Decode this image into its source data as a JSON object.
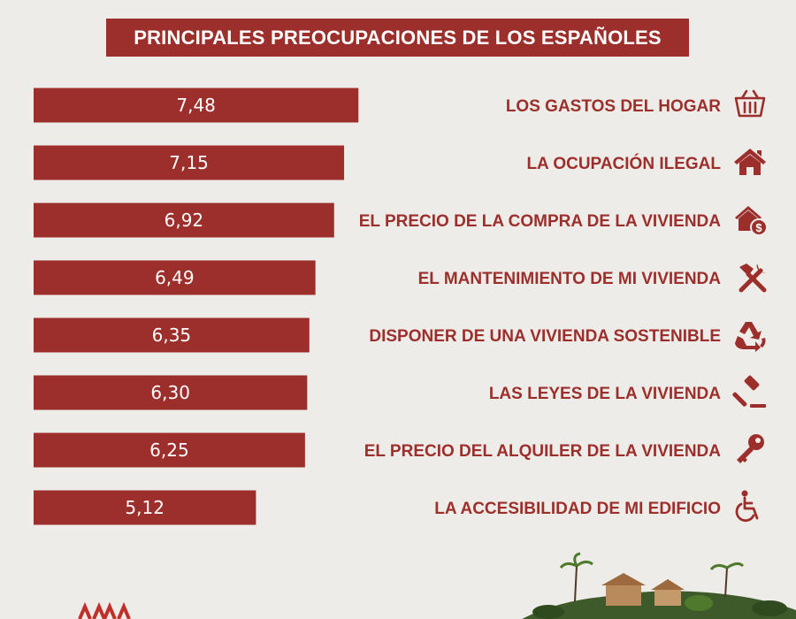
{
  "title": "PRINCIPALES PREOCUPACIONES DE LOS ESPAÑOLES",
  "colors": {
    "bar": "#9c2f2b",
    "background": "#eeece8",
    "label": "#9c2f2b",
    "value_text": "#ffffff"
  },
  "chart_data": {
    "type": "bar",
    "orientation": "horizontal",
    "categories": [
      "LOS GASTOS DEL HOGAR",
      "LA OCUPACIÓN ILEGAL",
      "EL PRECIO DE LA COMPRA DE LA VIVIENDA",
      "EL MANTENIMIENTO DE MI VIVIENDA",
      "DISPONER DE UNA VIVIENDA SOSTENIBLE",
      "LAS LEYES DE LA VIVIENDA",
      "EL PRECIO DEL ALQUILER DE LA VIVIENDA",
      "LA ACCESIBILIDAD DE MI EDIFICIO"
    ],
    "values": [
      7.48,
      7.15,
      6.92,
      6.49,
      6.35,
      6.3,
      6.25,
      5.12
    ],
    "value_labels": [
      "7,48",
      "7,15",
      "6,92",
      "6,49",
      "6,35",
      "6,30",
      "6,25",
      "5,12"
    ],
    "icons": [
      "basket-icon",
      "house-icon",
      "house-dollar-icon",
      "tools-icon",
      "recycle-icon",
      "gavel-icon",
      "key-icon",
      "wheelchair-icon"
    ],
    "grid": false,
    "legend": "none"
  }
}
